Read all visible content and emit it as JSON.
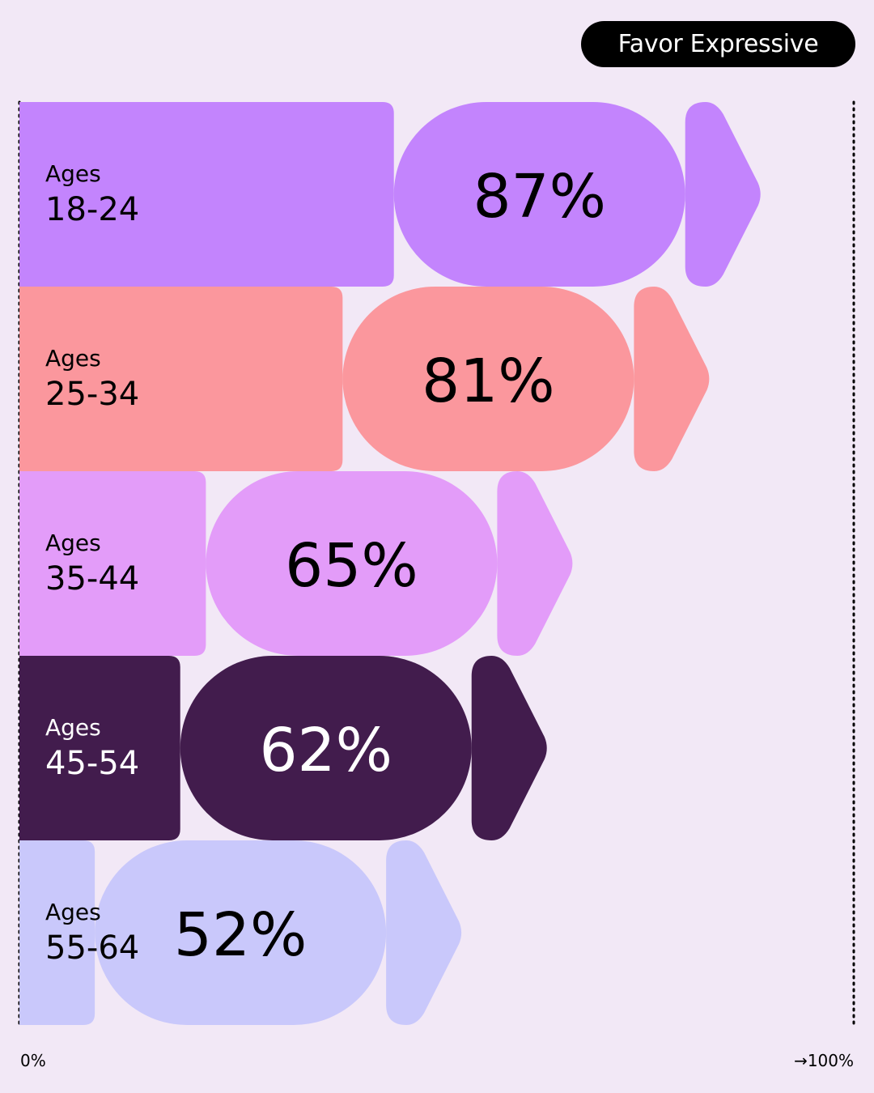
{
  "legend": {
    "label": "Favor Expressive"
  },
  "axis": {
    "min_label": "0%",
    "max_label": "→100%"
  },
  "chart_data": {
    "type": "bar",
    "orientation": "horizontal",
    "categories": [
      "Ages 18-24",
      "Ages 25-34",
      "Ages 35-44",
      "Ages 45-54",
      "Ages 55-64"
    ],
    "values": [
      87,
      81,
      65,
      62,
      52
    ],
    "value_labels": [
      "87%",
      "81%",
      "65%",
      "62%",
      "52%"
    ],
    "xlim": [
      0,
      100
    ],
    "grid": false,
    "legend_placement": "top-right",
    "series": [
      {
        "name": "Favor Expressive",
        "values": [
          87,
          81,
          65,
          62,
          52
        ]
      }
    ],
    "colors": [
      "#c384fd",
      "#fb979d",
      "#e39cf9",
      "#421c4d",
      "#c9c8fb"
    ],
    "text_colors": [
      "#000000",
      "#000000",
      "#000000",
      "#ffffff",
      "#000000"
    ],
    "label_colors": [
      "#000000",
      "#000000",
      "#000000",
      "#ffffff",
      "#000000"
    ]
  }
}
